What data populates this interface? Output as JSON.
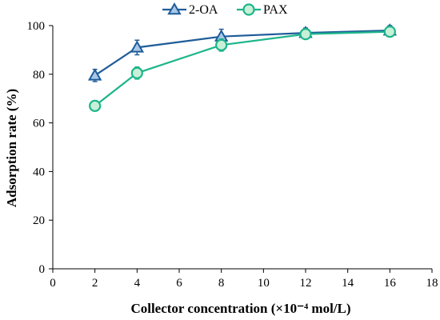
{
  "chart_data": {
    "type": "line",
    "xlabel": "Collector concentration (×10⁻⁴ mol/L)",
    "ylabel": "Adsorption rate (%)",
    "xlim": [
      0,
      18
    ],
    "ylim": [
      0,
      100
    ],
    "xticks": [
      "0",
      "2",
      "4",
      "6",
      "8",
      "10",
      "12",
      "14",
      "16",
      "18"
    ],
    "yticks": [
      "0",
      "20",
      "40",
      "60",
      "80",
      "100"
    ],
    "grid": false,
    "legend_position": "top-center",
    "series": [
      {
        "name": "2-OA",
        "marker": "triangle",
        "color": "#1f5c99",
        "fill": "#a8c8e8",
        "x": [
          2,
          4,
          8,
          12,
          16
        ],
        "y": [
          79.5,
          91,
          95.5,
          97,
          98
        ],
        "err": [
          2.5,
          3,
          3,
          2,
          2
        ]
      },
      {
        "name": "PAX",
        "marker": "circle",
        "color": "#1db58a",
        "fill": "#c8f0d8",
        "x": [
          2,
          4,
          8,
          12,
          16
        ],
        "y": [
          67,
          80.5,
          92,
          96.5,
          97.5
        ],
        "err": [
          2,
          2.5,
          2.5,
          2,
          2
        ]
      }
    ]
  }
}
